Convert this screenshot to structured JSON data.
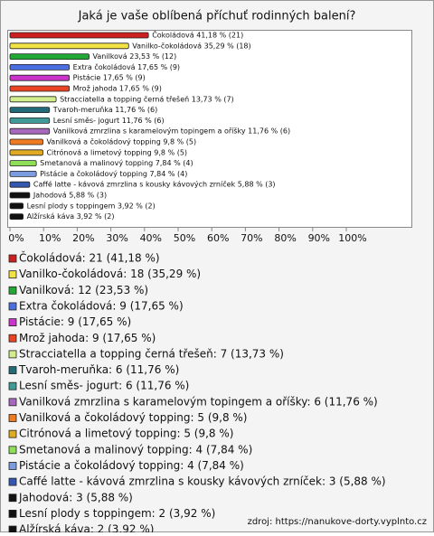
{
  "chart_data": {
    "type": "bar",
    "orientation": "horizontal",
    "title": "Jaká je vaše oblíbená příchuť rodinných balení?",
    "categories": [
      "Čokoládová",
      "Vanilko-čokoládová",
      "Vanilková",
      "Extra čokoládová",
      "Pistácie",
      "Mrož jahoda",
      "Stracciatella a topping černá třešeň",
      "Tvaroh-meruňka",
      "Lesní směs- jogurt",
      "Vanilková zmrzlina s karamelovým topingem a oříšky",
      "Vanilková a čokoládový topping",
      "Citrónová a limetový topping",
      "Smetanová a malinový topping",
      "Pistácie a čokoládový topping",
      "Caffé latte - kávová zmrzlina s kousky kávových zrníček",
      "Jahodová",
      "Lesní plody s toppingem",
      "Alžírská káva"
    ],
    "values": [
      41.18,
      35.29,
      23.53,
      17.65,
      17.65,
      17.65,
      13.73,
      11.76,
      11.76,
      11.76,
      9.8,
      9.8,
      7.84,
      7.84,
      5.88,
      5.88,
      3.92,
      3.92
    ],
    "value_labels": [
      "Čokoládová 41,18 % (21)",
      "Vanilko-čokoládová 35,29 % (18)",
      "Vanilková 23,53 % (12)",
      "Extra čokoládová 17,65 % (9)",
      "Pistácie 17,65 % (9)",
      "Mrož jahoda 17,65 % (9)",
      "Stracciatella a topping černá třešeň 13,73 % (7)",
      "Tvaroh-meruňka 11,76 % (6)",
      "Lesní směs- jogurt 11,76 % (6)",
      "Vanilková zmrzlina s karamelovým topingem a oříšky 11,76 % (6)",
      "Vanilková a čokoládový topping 9,8 % (5)",
      "Citrónová a limetový topping 9,8 % (5)",
      "Smetanová a malinový topping 7,84 % (4)",
      "Pistácie a čokoládový topping 7,84 % (4)",
      "Caffé latte - kávová zmrzlina s kousky kávových zrníček 5,88 % (3)",
      "Jahodová 5,88 % (3)",
      "Lesní plody s toppingem 3,92 % (2)",
      "Alžírská káva 3,92 % (2)"
    ],
    "legend_labels": [
      "Čokoládová: 21 (41,18 %)",
      "Vanilko-čokoládová: 18 (35,29 %)",
      "Vanilková: 12 (23,53 %)",
      "Extra čokoládová: 9 (17,65 %)",
      "Pistácie: 9 (17,65 %)",
      "Mrož jahoda: 9 (17,65 %)",
      "Stracciatella a topping černá třešeň: 7 (13,73 %)",
      "Tvaroh-meruňka: 6 (11,76 %)",
      "Lesní směs- jogurt: 6 (11,76 %)",
      "Vanilková zmrzlina s karamelovým topingem a oříšky: 6 (11,76 %)",
      "Vanilková a čokoládový topping: 5 (9,8 %)",
      "Citrónová a limetový topping: 5 (9,8 %)",
      "Smetanová a malinový topping: 4 (7,84 %)",
      "Pistácie a čokoládový topping: 4 (7,84 %)",
      "Caffé latte - kávová zmrzlina s kousky kávových zrníček: 3 (5,88 %)",
      "Jahodová: 3 (5,88 %)",
      "Lesní plody s toppingem: 2 (3,92 %)",
      "Alžírská káva: 2 (3,92 %)"
    ],
    "colors": [
      "#cc2020",
      "#f2e244",
      "#22a834",
      "#4a6ee0",
      "#cc33cc",
      "#e84424",
      "#d2ee8c",
      "#236a78",
      "#3f9a98",
      "#a868be",
      "#ee7a22",
      "#e0aa22",
      "#8ede58",
      "#7c9ce0",
      "#3458b0",
      "#111111",
      "#111111",
      "#111111"
    ],
    "xlim": [
      0,
      100
    ],
    "xticks": [
      {
        "value": 0,
        "label": "0%"
      },
      {
        "value": 10,
        "label": "10%"
      },
      {
        "value": 20,
        "label": "20%"
      },
      {
        "value": 30,
        "label": "30%"
      },
      {
        "value": 40,
        "label": "40%"
      },
      {
        "value": 50,
        "label": "50%"
      },
      {
        "value": 60,
        "label": "60%"
      },
      {
        "value": 70,
        "label": "70%"
      },
      {
        "value": 80,
        "label": "80%"
      },
      {
        "value": 90,
        "label": "90%"
      },
      {
        "value": 100,
        "label": "100%"
      }
    ],
    "source": "zdroj: https://nanukove-dorty.vyplnto.cz"
  }
}
